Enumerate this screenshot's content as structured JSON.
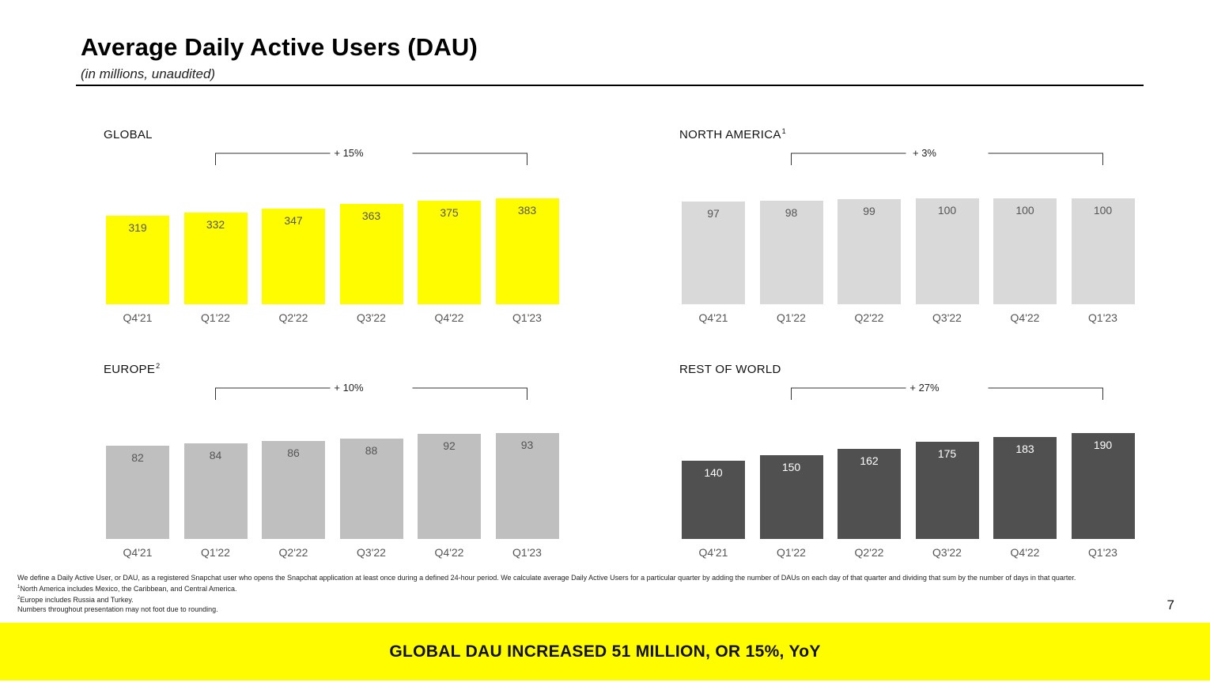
{
  "header": {
    "title": "Average Daily Active Users (DAU)",
    "subtitle": "(in millions, unaudited)"
  },
  "chart_data": [
    {
      "type": "bar",
      "title": "GLOBAL",
      "title_sup": "",
      "growth_label": "+ 15%",
      "categories": [
        "Q4'21",
        "Q1'22",
        "Q2'22",
        "Q3'22",
        "Q4'22",
        "Q1'23"
      ],
      "values": [
        319,
        332,
        347,
        363,
        375,
        383
      ],
      "bar_color": "#FFFC00",
      "label_color": "#555555",
      "ylim": [
        0,
        383
      ]
    },
    {
      "type": "bar",
      "title": "NORTH AMERICA",
      "title_sup": "1",
      "growth_label": "+ 3%",
      "categories": [
        "Q4'21",
        "Q1'22",
        "Q2'22",
        "Q3'22",
        "Q4'22",
        "Q1'23"
      ],
      "values": [
        97,
        98,
        99,
        100,
        100,
        100
      ],
      "bar_color": "#D9D9D9",
      "label_color": "#555555",
      "ylim": [
        0,
        100
      ]
    },
    {
      "type": "bar",
      "title": "EUROPE",
      "title_sup": "2",
      "growth_label": "+ 10%",
      "categories": [
        "Q4'21",
        "Q1'22",
        "Q2'22",
        "Q3'22",
        "Q4'22",
        "Q1'23"
      ],
      "values": [
        82,
        84,
        86,
        88,
        92,
        93
      ],
      "bar_color": "#BFBFBF",
      "label_color": "#555555",
      "ylim": [
        0,
        93
      ]
    },
    {
      "type": "bar",
      "title": "REST OF WORLD",
      "title_sup": "",
      "growth_label": "+ 27%",
      "categories": [
        "Q4'21",
        "Q1'22",
        "Q2'22",
        "Q3'22",
        "Q4'22",
        "Q1'23"
      ],
      "values": [
        140,
        150,
        162,
        175,
        183,
        190
      ],
      "bar_color": "#505050",
      "label_color": "#FFFFFF",
      "ylim": [
        0,
        190
      ]
    }
  ],
  "footnotes": {
    "definition": "We define a Daily Active User, or DAU, as a registered Snapchat user who opens the Snapchat application at least once during a defined 24-hour period. We calculate average Daily Active Users for a particular quarter by adding the number of DAUs on each day of that quarter and dividing that sum by the number of days in that quarter.",
    "note1_marker": "1",
    "note1": "North America includes Mexico, the Caribbean, and Central America.",
    "note2_marker": "2",
    "note2": "Europe includes Russia and Turkey.",
    "rounding": "Numbers throughout presentation may not foot due to rounding."
  },
  "page_number": "7",
  "banner": {
    "text": "GLOBAL DAU INCREASED 51 MILLION, OR 15%, YoY",
    "color": "#FFFC00"
  }
}
